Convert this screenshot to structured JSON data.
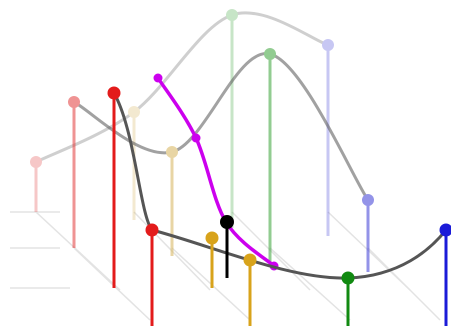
{
  "diagram": {
    "kind": "3d-stem-interpolation",
    "layers": [
      {
        "id": "back",
        "opacity": 0.28,
        "points": [
          {
            "color": "#e23b3b"
          },
          {
            "color": "#d7b45a"
          },
          {
            "color": "#3aa339"
          },
          {
            "color": "#3b3bd6"
          }
        ]
      },
      {
        "id": "middle",
        "opacity": 0.55,
        "points": [
          {
            "color": "#e23b3b"
          },
          {
            "color": "#d7b45a"
          },
          {
            "color": "#3aa339"
          },
          {
            "color": "#3b3bd6"
          }
        ]
      },
      {
        "id": "front",
        "opacity": 1.0,
        "points": [
          {
            "color": "#e31b1b"
          },
          {
            "color": "#d8a31b"
          },
          {
            "color": "#118a11"
          },
          {
            "color": "#1b1bd8"
          }
        ]
      }
    ],
    "highlight_curve": {
      "color": "#cc00ee"
    },
    "highlight_point": {
      "color": "#000000"
    },
    "curve_color": "#555555"
  }
}
